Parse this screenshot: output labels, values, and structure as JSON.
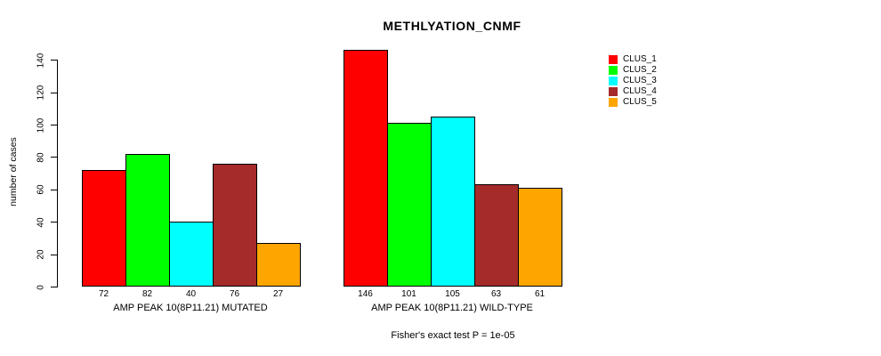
{
  "chart_data": {
    "type": "bar",
    "title": "METHLYATION_CNMF",
    "ylabel": "number of cases",
    "xlabel": "",
    "ylim": [
      0,
      140
    ],
    "yticks": [
      0,
      20,
      40,
      60,
      80,
      100,
      120,
      140
    ],
    "grid": false,
    "legend_position": "right",
    "series_labels": [
      "CLUS_1",
      "CLUS_2",
      "CLUS_3",
      "CLUS_4",
      "CLUS_5"
    ],
    "colors": [
      "#FF0000",
      "#00FF00",
      "#00FFFF",
      "#A52A2A",
      "#FFA500"
    ],
    "groups": [
      {
        "label": "AMP PEAK 10(8P11.21) MUTATED",
        "values": [
          72,
          82,
          40,
          76,
          27
        ]
      },
      {
        "label": "AMP PEAK 10(8P11.21) WILD-TYPE",
        "values": [
          146,
          101,
          105,
          63,
          61
        ]
      }
    ],
    "annotation": "Fisher's exact test P = 1e-05"
  }
}
